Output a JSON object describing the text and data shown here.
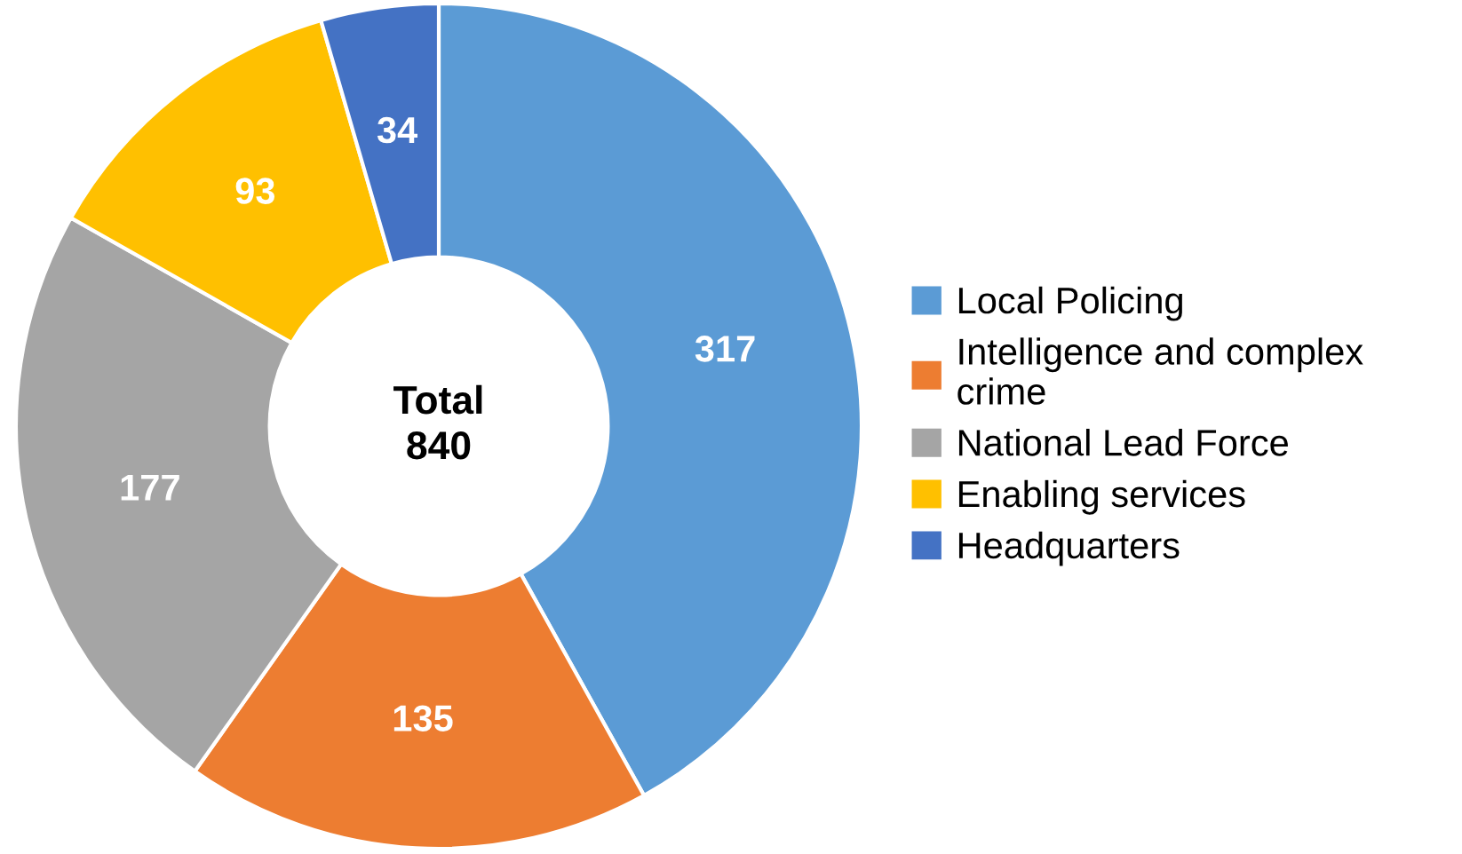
{
  "chart_data": {
    "type": "donut",
    "categories": [
      "Local Policing",
      "Intelligence and complex\ncrime",
      "National Lead Force",
      "Enabling services",
      "Headquarters"
    ],
    "values": [
      317,
      135,
      177,
      93,
      34
    ],
    "colors": [
      "#5b9bd5",
      "#ed7d31",
      "#a5a5a5",
      "#ffc000",
      "#4472c4"
    ],
    "data_labels": true,
    "legend": "right",
    "annotations": [
      "Total\n840"
    ]
  }
}
